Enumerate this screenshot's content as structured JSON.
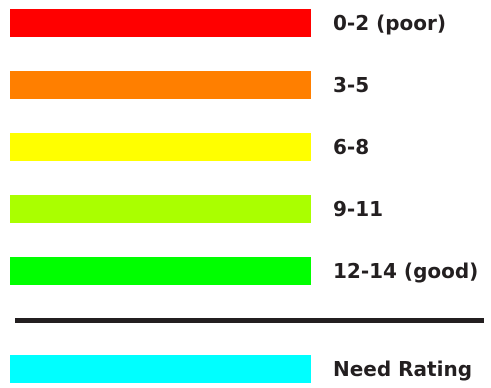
{
  "legend": {
    "items": [
      {
        "label": "0-2 (poor)",
        "color": "#ff0000"
      },
      {
        "label": "3-5",
        "color": "#ff7f00"
      },
      {
        "label": "6-8",
        "color": "#ffff00"
      },
      {
        "label": "9-11",
        "color": "#aaff00"
      },
      {
        "label": "12-14 (good)",
        "color": "#00ff00"
      }
    ],
    "extra": {
      "label": "Need Rating",
      "color": "#00ffff"
    }
  }
}
